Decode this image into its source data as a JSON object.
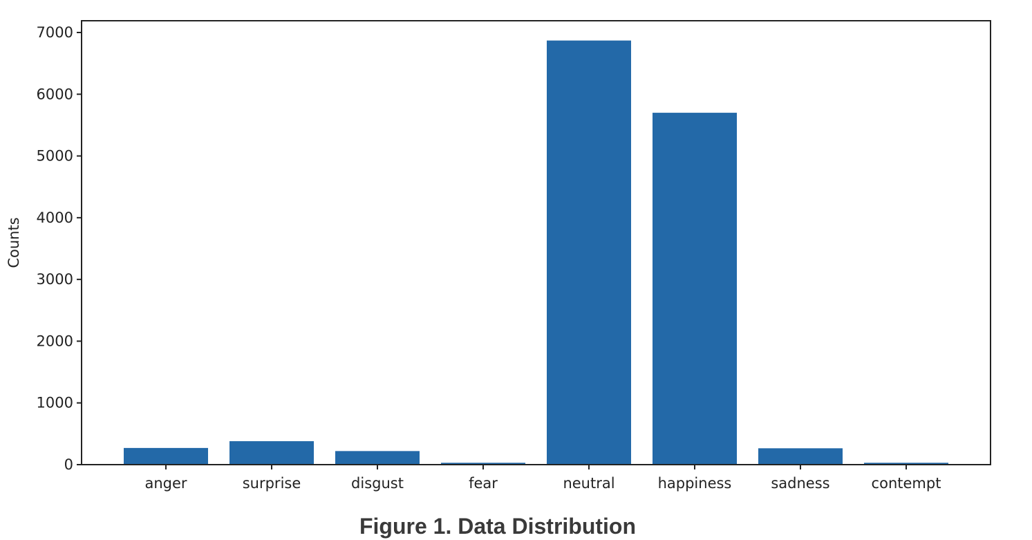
{
  "chart_data": {
    "type": "bar",
    "categories": [
      "anger",
      "surprise",
      "disgust",
      "fear",
      "neutral",
      "happiness",
      "sadness",
      "contempt"
    ],
    "values": [
      270,
      380,
      220,
      30,
      6870,
      5700,
      265,
      30
    ],
    "xlabel": "",
    "ylabel": "Counts",
    "ylim": [
      0,
      7000
    ],
    "yticks": [
      0,
      1000,
      2000,
      3000,
      4000,
      5000,
      6000,
      7000
    ],
    "bar_color": "#2369a8",
    "grid": false,
    "caption": "Figure 1. Data Distribution"
  }
}
